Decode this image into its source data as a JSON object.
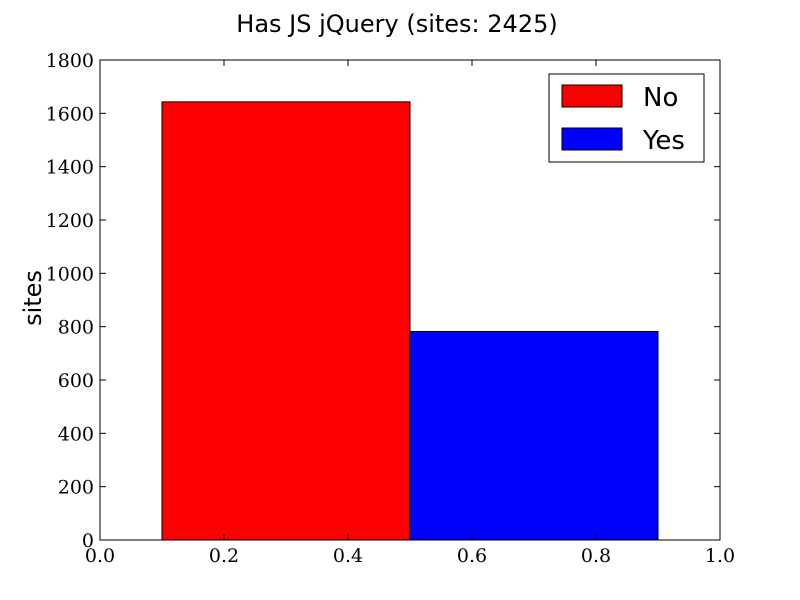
{
  "chart_data": {
    "type": "bar",
    "title": "Has JS jQuery (sites: 2425)",
    "xlabel": "",
    "ylabel": "sites",
    "xlim": [
      0.0,
      1.0
    ],
    "ylim": [
      0,
      1800
    ],
    "xticks": [
      "0.0",
      "0.2",
      "0.4",
      "0.6",
      "0.8",
      "1.0"
    ],
    "yticks": [
      "0",
      "200",
      "400",
      "600",
      "800",
      "1000",
      "1200",
      "1400",
      "1600",
      "1800"
    ],
    "categories": [
      "No",
      "Yes"
    ],
    "bars": [
      {
        "label": "No",
        "x_start": 0.1,
        "x_end": 0.5,
        "value": 1643,
        "color": "#ff0000"
      },
      {
        "label": "Yes",
        "x_start": 0.5,
        "x_end": 0.9,
        "value": 782,
        "color": "#0000ff"
      }
    ],
    "legend": {
      "placement": "top-right",
      "entries": [
        {
          "label": "No",
          "color": "#ff0000"
        },
        {
          "label": "Yes",
          "color": "#0000ff"
        }
      ]
    },
    "grid": false
  }
}
